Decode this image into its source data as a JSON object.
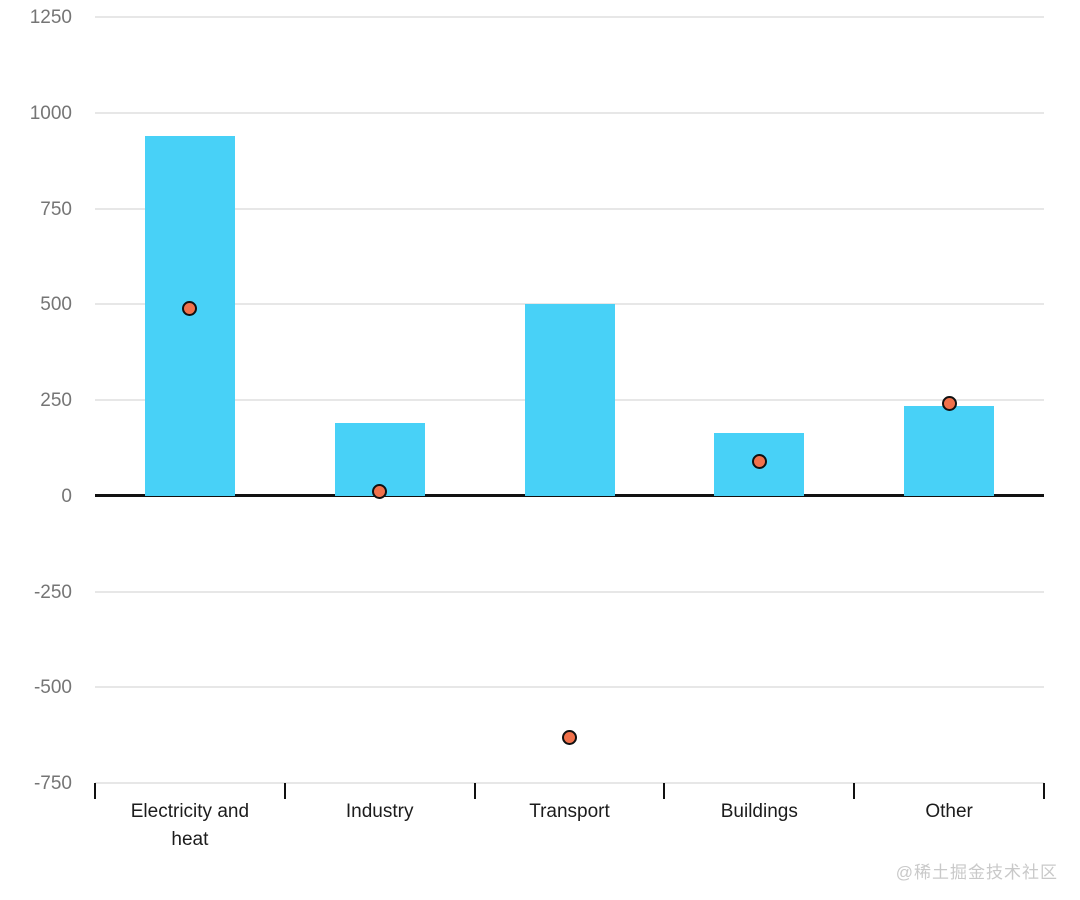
{
  "chart_data": {
    "type": "bar",
    "title": "",
    "xlabel": "",
    "ylabel": "",
    "categories": [
      "Electricity and heat",
      "Industry",
      "Transport",
      "Buildings",
      "Other"
    ],
    "series": [
      {
        "name": "bars",
        "type": "bar",
        "values": [
          940,
          190,
          500,
          165,
          235
        ],
        "color": "#48D1F7"
      },
      {
        "name": "dots",
        "type": "scatter",
        "values": [
          490,
          10,
          -630,
          90,
          240
        ],
        "color": "#F0714B",
        "stroke": "#111111"
      }
    ],
    "ylim": [
      -750,
      1250
    ],
    "yticks": [
      1250,
      1000,
      750,
      500,
      250,
      0,
      -250,
      -500,
      -750
    ],
    "grid": true,
    "legend": "none",
    "gridline_color": "#e7e7e7",
    "zero_line_color": "#111111",
    "axis_label_color": "#757575",
    "category_label_color": "#1c1c1c"
  },
  "watermark": {
    "text": "@稀土掘金技术社区",
    "color": "#c9c9c9"
  }
}
